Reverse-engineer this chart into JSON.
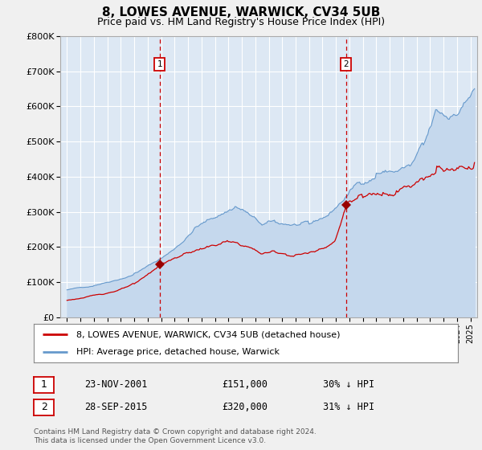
{
  "title": "8, LOWES AVENUE, WARWICK, CV34 5UB",
  "subtitle": "Price paid vs. HM Land Registry's House Price Index (HPI)",
  "title_fontsize": 11,
  "subtitle_fontsize": 9,
  "fig_bg_color": "#f0f0f0",
  "plot_bg_color": "#dde8f4",
  "ylim": [
    0,
    800000
  ],
  "yticks": [
    0,
    100000,
    200000,
    300000,
    400000,
    500000,
    600000,
    700000,
    800000
  ],
  "ytick_labels": [
    "£0",
    "£100K",
    "£200K",
    "£300K",
    "£400K",
    "£500K",
    "£600K",
    "£700K",
    "£800K"
  ],
  "xlim_start": 1994.5,
  "xlim_end": 2025.5,
  "grid_color": "#ffffff",
  "sale1_x": 2001.9,
  "sale1_y": 151000,
  "sale1_label": "23-NOV-2001",
  "sale1_price": "£151,000",
  "sale1_hpi": "30% ↓ HPI",
  "sale2_x": 2015.75,
  "sale2_y": 320000,
  "sale2_label": "28-SEP-2015",
  "sale2_price": "£320,000",
  "sale2_hpi": "31% ↓ HPI",
  "line_red_color": "#cc0000",
  "line_blue_color": "#6699cc",
  "line_blue_fill": "#c5d8ed",
  "vline_color": "#cc0000",
  "marker_color": "#990000",
  "legend_label_red": "8, LOWES AVENUE, WARWICK, CV34 5UB (detached house)",
  "legend_label_blue": "HPI: Average price, detached house, Warwick",
  "footer_text": "Contains HM Land Registry data © Crown copyright and database right 2024.\nThis data is licensed under the Open Government Licence v3.0."
}
